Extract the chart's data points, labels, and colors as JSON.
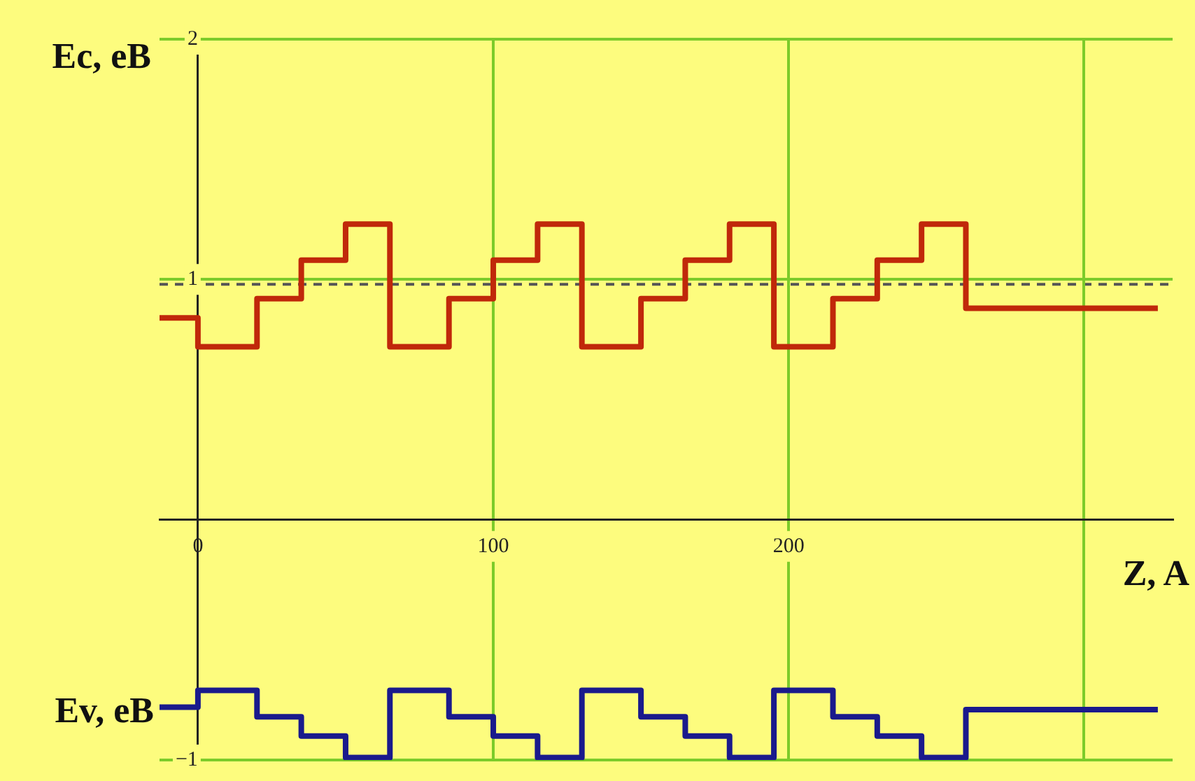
{
  "chart_data": {
    "type": "step",
    "xlabel": "Z, A",
    "ylabel": "Ec, eB",
    "xlim": [
      -13,
      330
    ],
    "ylim": [
      -1,
      2
    ],
    "xticks": [
      0,
      100,
      200,
      {
        "value": 300,
        "label": null
      }
    ],
    "yticks": [
      -1,
      1,
      2
    ],
    "grid": true,
    "marker": "none",
    "ref_lines": [
      {
        "axis": "y",
        "value": 0.98,
        "color": "#555555",
        "line_style": "dashed"
      }
    ],
    "series": [
      {
        "color": "#c0280a",
        "x": [
          -13,
          0,
          20,
          35,
          50,
          65,
          85,
          100,
          115,
          130,
          150,
          165,
          180,
          195,
          215,
          230,
          245,
          260,
          325
        ],
        "values": [
          0.84,
          0.72,
          0.92,
          1.08,
          1.23,
          0.72,
          0.92,
          1.08,
          1.23,
          0.72,
          0.92,
          1.08,
          1.23,
          0.72,
          0.92,
          1.08,
          1.23,
          0.88,
          0.88
        ]
      },
      {
        "name": "Ev, eB",
        "color": "#1a1a8c",
        "x": [
          -13,
          0,
          20,
          35,
          50,
          65,
          85,
          100,
          115,
          130,
          150,
          165,
          180,
          195,
          215,
          230,
          245,
          260,
          325
        ],
        "values": [
          -0.78,
          -0.71,
          -0.82,
          -0.9,
          -0.99,
          -0.71,
          -0.82,
          -0.9,
          -0.99,
          -0.71,
          -0.82,
          -0.9,
          -0.99,
          -0.71,
          -0.82,
          -0.9,
          -0.99,
          -0.79,
          -0.79
        ]
      }
    ]
  }
}
